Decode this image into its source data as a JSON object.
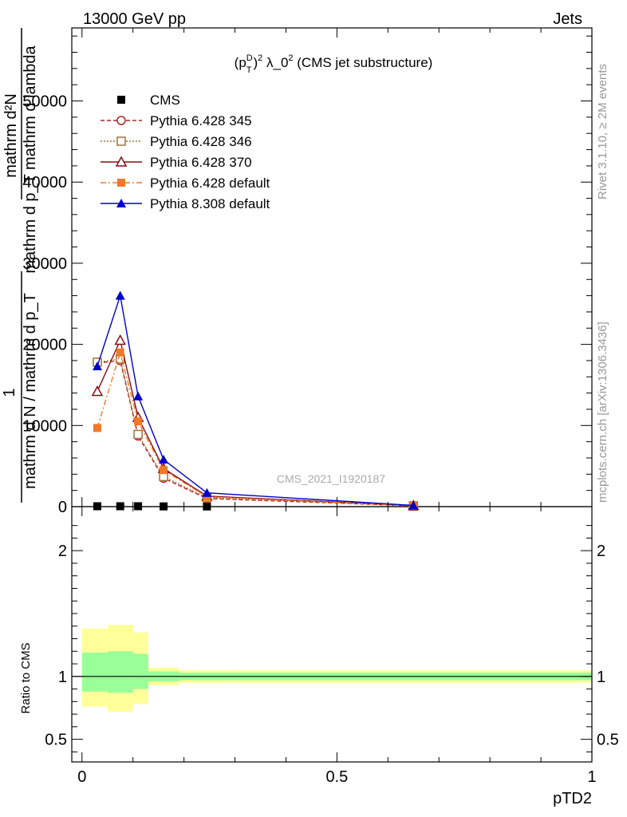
{
  "header": {
    "energy_label": "13000 GeV pp",
    "category_label": "Jets"
  },
  "side_labels": {
    "rivet": "Rivet 3.1.10, ≥ 2M events",
    "mcplots": "mcplots.cern.ch [arXiv:1306.3436]"
  },
  "watermark": "CMS_2021_I1920187",
  "chart_data": {
    "type": "line",
    "title": "(p_T^D)^2 λ_0^2 (CMS jet substructure)",
    "title_parts": {
      "p": "(p",
      "sup_d": "D",
      "sub_t": "T",
      "close": ")",
      "sup_2": "2",
      "rest": " λ_0",
      "sup_2b": "2",
      "tail": " (CMS jet substructure)"
    },
    "xlabel": "pTD2",
    "ylabel_main": {
      "numerator": "mathrm d²N",
      "denominator": "mathrm d p_T mathrm d lambda",
      "prefix_num": "1",
      "prefix_den": "mathrm d N / mathrm d p_T"
    },
    "ylabel_ratio": "Ratio to CMS",
    "xlim": [
      -0.02,
      1.0
    ],
    "ylim": [
      0,
      59000
    ],
    "ratio_ylim": [
      0.32,
      2.35
    ],
    "x_ticks": [
      {
        "value": 0,
        "label": "0"
      },
      {
        "value": 0.5,
        "label": "0.5"
      },
      {
        "value": 1,
        "label": "1"
      }
    ],
    "y_ticks": [
      {
        "value": 0,
        "label": "0"
      },
      {
        "value": 10000,
        "label": "10000"
      },
      {
        "value": 20000,
        "label": "20000"
      },
      {
        "value": 30000,
        "label": "30000"
      },
      {
        "value": 40000,
        "label": "40000"
      },
      {
        "value": 50000,
        "label": "50000"
      }
    ],
    "ratio_ticks": [
      {
        "value": 0.5,
        "label": "0.5"
      },
      {
        "value": 1,
        "label": "1"
      },
      {
        "value": 2,
        "label": "2"
      }
    ],
    "x": [
      0.03,
      0.075,
      0.11,
      0.16,
      0.245,
      0.65
    ],
    "bin_edges": [
      0,
      0.05,
      0.1,
      0.13,
      0.19,
      0.3,
      1.0
    ],
    "series": [
      {
        "name": "CMS",
        "color": "#000000",
        "marker": "square-filled",
        "dash": "none",
        "values": [
          50,
          50,
          50,
          30,
          20,
          0
        ]
      },
      {
        "name": "Pythia 6.428 345",
        "color": "#b22222",
        "marker": "circle-open",
        "dash": "5,3",
        "values": [
          17700,
          18000,
          8700,
          3500,
          1000,
          100
        ]
      },
      {
        "name": "Pythia 6.428 346",
        "color": "#a0743a",
        "marker": "square-open",
        "dash": "2,2",
        "values": [
          17800,
          18200,
          8900,
          3700,
          1100,
          100
        ]
      },
      {
        "name": "Pythia 6.428 370",
        "color": "#8b0a14",
        "marker": "triangle-open",
        "dash": "none",
        "values": [
          14200,
          20500,
          11000,
          4700,
          1300,
          120
        ]
      },
      {
        "name": "Pythia 6.428 default",
        "color": "#f07828",
        "marker": "square-filled",
        "dash": "7,3,2,3",
        "values": [
          9700,
          19000,
          10500,
          4500,
          1200,
          110
        ]
      },
      {
        "name": "Pythia 8.308 default",
        "color": "#0000cc",
        "marker": "triangle-filled",
        "dash": "none",
        "values": [
          17300,
          26000,
          13600,
          5800,
          1700,
          150
        ]
      }
    ],
    "ratio_bands": {
      "yellow_color": "#ffff99",
      "green_color": "#99ff99",
      "yellow": [
        [
          0.76,
          1.38
        ],
        [
          0.72,
          1.41
        ],
        [
          0.78,
          1.35
        ],
        [
          0.93,
          1.07
        ],
        [
          0.95,
          1.05
        ],
        [
          0.95,
          1.05
        ]
      ],
      "green": [
        [
          0.88,
          1.19
        ],
        [
          0.87,
          1.2
        ],
        [
          0.9,
          1.18
        ],
        [
          0.96,
          1.04
        ],
        [
          0.97,
          1.03
        ],
        [
          0.97,
          1.03
        ]
      ]
    }
  }
}
